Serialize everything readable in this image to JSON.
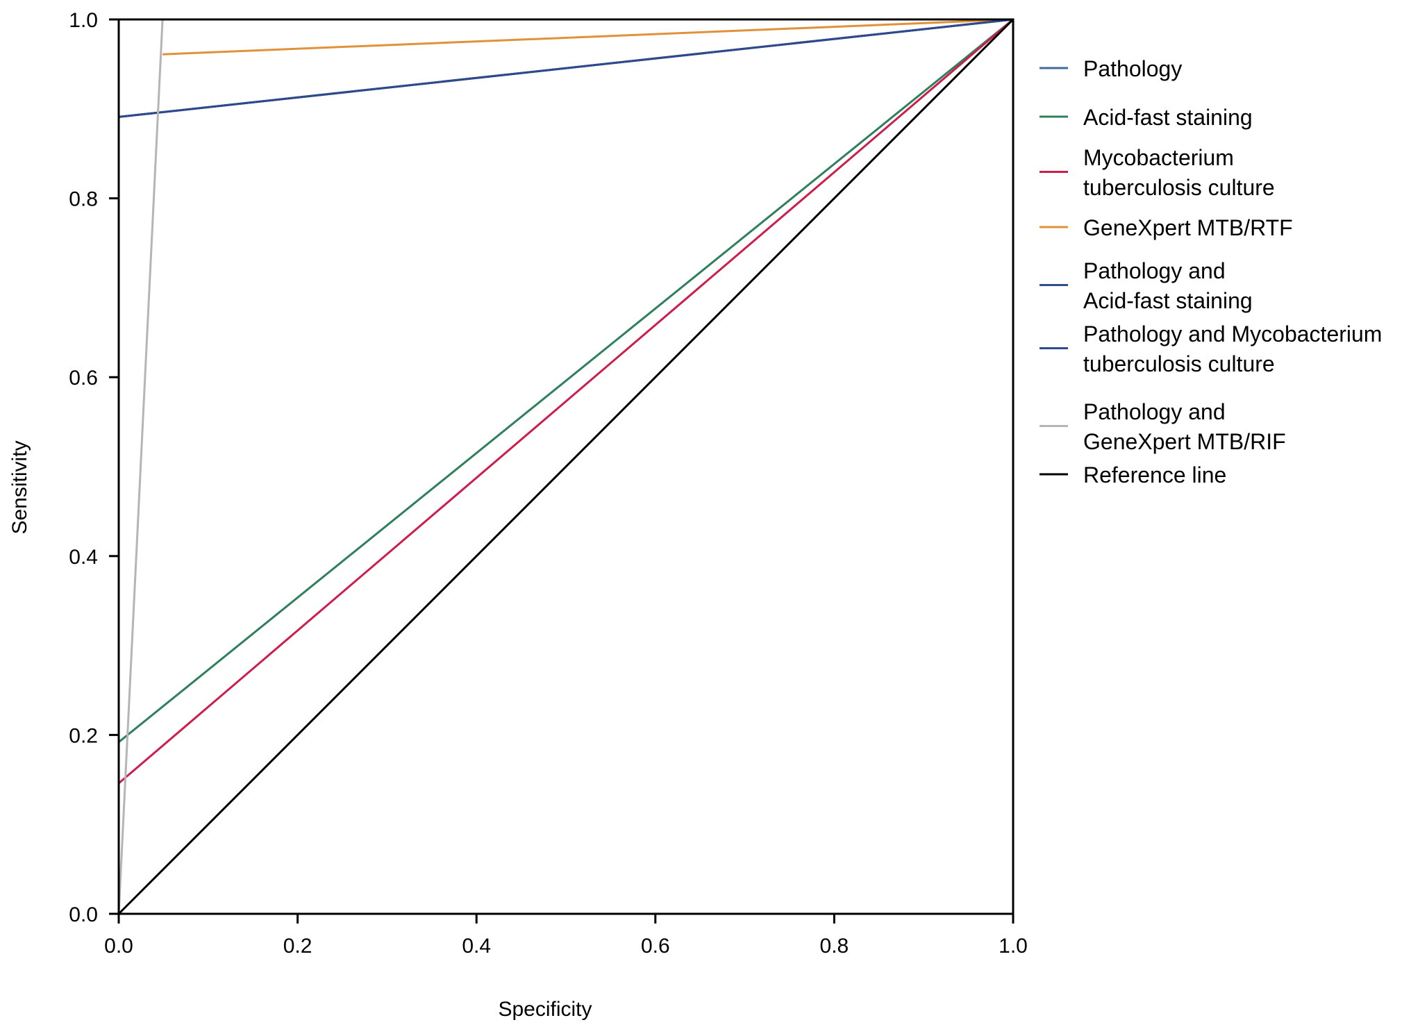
{
  "chart_data": {
    "type": "line",
    "xlabel": "Specificity",
    "ylabel": "Sensitivity",
    "xlim": [
      0.0,
      1.0
    ],
    "ylim": [
      0.0,
      1.0
    ],
    "xticks": [
      "0.0",
      "0.2",
      "0.4",
      "0.6",
      "0.8",
      "1.0"
    ],
    "yticks": [
      "0.0",
      "0.2",
      "0.4",
      "0.6",
      "0.8",
      "1.0"
    ],
    "grid": false,
    "legend_position": "right",
    "series": [
      {
        "name": "Pathology",
        "color": "#3e6b9a",
        "points": [
          [
            0.0,
            0.891
          ],
          [
            1.0,
            1.0
          ]
        ]
      },
      {
        "name": "Acid-fast staining",
        "color": "#2e7f5b",
        "points": [
          [
            0.0,
            0.192
          ],
          [
            1.0,
            1.0
          ]
        ]
      },
      {
        "name": "Mycobacterium tuberculosis culture",
        "color": "#cc1e4a",
        "points": [
          [
            0.0,
            0.146
          ],
          [
            1.0,
            1.0
          ]
        ]
      },
      {
        "name": "GeneXpert MTB/RTF",
        "color": "#e0913a",
        "points": [
          [
            0.049,
            0.961
          ],
          [
            1.0,
            1.0
          ]
        ]
      },
      {
        "name": "Pathology and Acid-fast staining",
        "color": "#2c4f86",
        "points": [
          [
            0.0,
            0.891
          ],
          [
            1.0,
            1.0
          ]
        ]
      },
      {
        "name": "Pathology and Mycobacterium tuberculosis culture",
        "color": "#2f4a8c",
        "points": [
          [
            0.0,
            0.891
          ],
          [
            1.0,
            1.0
          ]
        ]
      },
      {
        "name": "Pathology and GeneXpert MTB/RIF",
        "color": "#b5b5b5",
        "points": [
          [
            0.0,
            0.0
          ],
          [
            0.049,
            1.0
          ]
        ]
      },
      {
        "name": "Reference line",
        "color": "#000000",
        "points": [
          [
            0.0,
            0.0
          ],
          [
            1.0,
            1.0
          ]
        ]
      }
    ],
    "legend": [
      {
        "lines": [
          "Pathology"
        ],
        "color": "#3e6b9a"
      },
      {
        "lines": [
          "Acid-fast staining"
        ],
        "color": "#2e7f5b"
      },
      {
        "lines": [
          "Mycobacterium",
          "tuberculosis culture"
        ],
        "color": "#cc1e4a"
      },
      {
        "lines": [
          "GeneXpert MTB/RTF"
        ],
        "color": "#e0913a"
      },
      {
        "lines": [
          "Pathology and",
          "Acid-fast staining"
        ],
        "color": "#2c4f86"
      },
      {
        "lines": [
          "Pathology and Mycobacterium",
          "tuberculosis culture"
        ],
        "color": "#2f4a8c"
      },
      {
        "lines": [
          "Pathology and",
          "GeneXpert MTB/RIF"
        ],
        "color": "#b5b5b5"
      },
      {
        "lines": [
          "Reference line"
        ],
        "color": "#000000"
      }
    ]
  }
}
